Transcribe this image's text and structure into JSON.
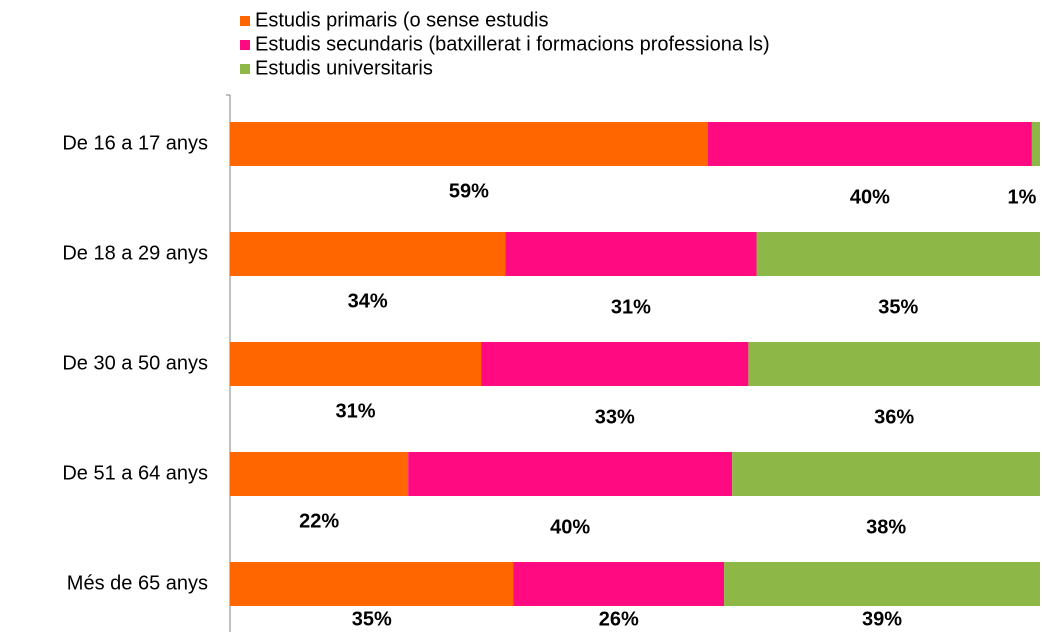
{
  "chart_data": {
    "type": "stacked-bar-horizontal",
    "categories": [
      "De 16 a 17 anys",
      "De 18 a 29 anys",
      "De 30 a 50 anys",
      "De 51 a 64 anys",
      "Més de 65 anys"
    ],
    "series": [
      {
        "name": "Estudis primaris (o sense estudis",
        "color": "#ff6600",
        "values": [
          59,
          34,
          31,
          22,
          35
        ],
        "value_labels": [
          "59%",
          "34%",
          "31%",
          "22%",
          "35%"
        ]
      },
      {
        "name": "Estudis secundaris (batxillerat i formacions professiona ls)",
        "color": "#ff0a80",
        "values": [
          40,
          31,
          33,
          40,
          26
        ],
        "value_labels": [
          "40%",
          "31%",
          "33%",
          "40%",
          "26%"
        ]
      },
      {
        "name": "Estudis universitaris",
        "color": "#8db848",
        "values": [
          1,
          35,
          36,
          38,
          39
        ],
        "value_labels": [
          "1%",
          "35%",
          "36%",
          "38%",
          "39%"
        ]
      }
    ],
    "xlim": [
      0,
      100
    ],
    "legend": "top"
  }
}
